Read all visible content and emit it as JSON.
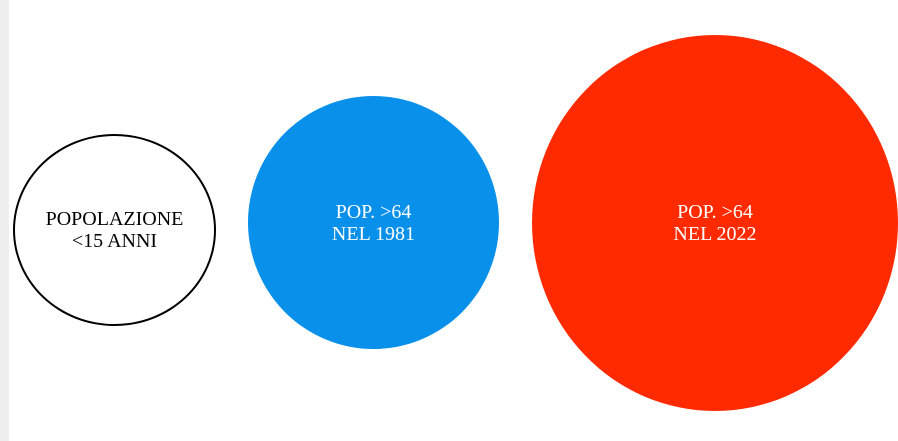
{
  "circles": [
    {
      "lines": [
        "POPOLAZIONE",
        "<15 ANNI"
      ],
      "fill": "#ffffff",
      "stroke": "#000000",
      "text_color": "#000000"
    },
    {
      "lines": [
        "POP. >64",
        "NEL 1981"
      ],
      "fill": "#0890ea",
      "text_color": "#ffffff"
    },
    {
      "lines": [
        "POP. >64",
        "NEL 2022"
      ],
      "fill": "#ff2a00",
      "text_color": "#ffffff"
    }
  ]
}
